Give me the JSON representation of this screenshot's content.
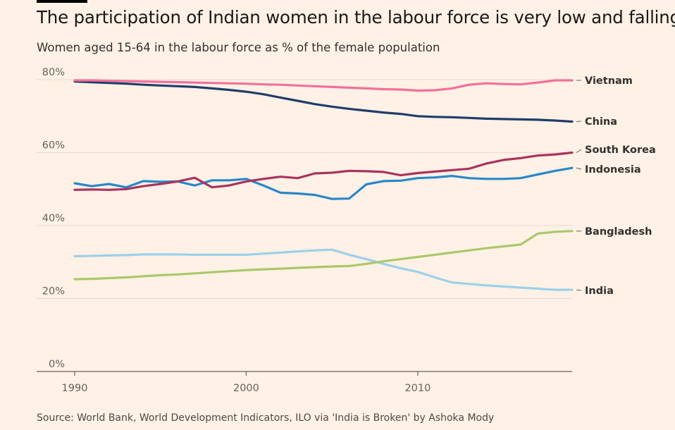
{
  "title": "The participation of Indian women in the labour force is very low and falling",
  "subtitle": "Women aged 15-64 in the labour force as % of the female population",
  "source": "Source: World Bank, World Development Indicators, ILO via 'India is Broken' by Ashoka Mody",
  "chart_data": {
    "type": "line",
    "title": "The participation of Indian women in the labour force is very low and falling",
    "subtitle": "Women aged 15-64 in the labour force as % of the female population",
    "xlabel": "",
    "ylabel": "",
    "xlim": [
      1990,
      2019
    ],
    "ylim": [
      0,
      80
    ],
    "x_ticks": [
      {
        "value": 1990,
        "label": "1990"
      },
      {
        "value": 2000,
        "label": "2000"
      },
      {
        "value": 2010,
        "label": "2010"
      }
    ],
    "y_ticks": [
      {
        "value": 0,
        "label": "0%"
      },
      {
        "value": 20,
        "label": "20%"
      },
      {
        "value": 40,
        "label": "40%"
      },
      {
        "value": 60,
        "label": "60%"
      },
      {
        "value": 80,
        "label": "80%"
      }
    ],
    "grid": "horizontal",
    "legend": "direct labels at right end of lines",
    "x": [
      1990,
      1991,
      1992,
      1993,
      1994,
      1995,
      1996,
      1997,
      1998,
      1999,
      2000,
      2001,
      2002,
      2003,
      2004,
      2005,
      2006,
      2007,
      2008,
      2009,
      2010,
      2011,
      2012,
      2013,
      2014,
      2015,
      2016,
      2017,
      2018,
      2019
    ],
    "series": [
      {
        "name": "Vietnam",
        "color": "#f2709c",
        "values": [
          79.8,
          79.8,
          79.7,
          79.6,
          79.5,
          79.4,
          79.3,
          79.2,
          79.1,
          79.0,
          78.9,
          78.7,
          78.6,
          78.4,
          78.2,
          78.0,
          77.8,
          77.6,
          77.4,
          77.3,
          77.0,
          77.1,
          77.6,
          78.6,
          79.0,
          78.8,
          78.7,
          79.2,
          79.8,
          79.8
        ]
      },
      {
        "name": "China",
        "color": "#1f3d6b",
        "values": [
          79.5,
          79.3,
          79.1,
          78.9,
          78.6,
          78.4,
          78.2,
          78.0,
          77.6,
          77.2,
          76.7,
          76.0,
          75.1,
          74.2,
          73.3,
          72.6,
          72.0,
          71.5,
          71.0,
          70.6,
          70.0,
          69.8,
          69.7,
          69.5,
          69.3,
          69.2,
          69.1,
          69.0,
          68.8,
          68.5
        ]
      },
      {
        "name": "South Korea",
        "color": "#a93360",
        "values": [
          49.8,
          49.9,
          49.8,
          50.0,
          50.8,
          51.4,
          52.1,
          53.1,
          50.5,
          51.0,
          52.1,
          52.8,
          53.4,
          53.0,
          54.3,
          54.5,
          55.0,
          54.9,
          54.7,
          53.8,
          54.4,
          54.8,
          55.2,
          55.6,
          57.0,
          58.0,
          58.5,
          59.2,
          59.5,
          60.0
        ]
      },
      {
        "name": "Indonesia",
        "color": "#2788c9",
        "values": [
          51.6,
          50.8,
          51.4,
          50.5,
          52.2,
          52.0,
          52.1,
          51.0,
          52.4,
          52.4,
          52.8,
          51.0,
          49.0,
          48.8,
          48.4,
          47.3,
          47.4,
          51.3,
          52.2,
          52.3,
          53.0,
          53.2,
          53.6,
          53.0,
          52.8,
          52.8,
          53.0,
          54.0,
          55.0,
          55.8
        ]
      },
      {
        "name": "Bangladesh",
        "color": "#a9c96a",
        "values": [
          25.3,
          25.4,
          25.6,
          25.8,
          26.1,
          26.4,
          26.6,
          26.9,
          27.2,
          27.5,
          27.8,
          28.0,
          28.2,
          28.4,
          28.6,
          28.8,
          28.9,
          29.5,
          30.2,
          30.8,
          31.4,
          32.0,
          32.6,
          33.2,
          33.8,
          34.3,
          34.8,
          37.8,
          38.3,
          38.5
        ]
      },
      {
        "name": "India",
        "color": "#9bd1ea",
        "values": [
          31.6,
          31.7,
          31.8,
          31.9,
          32.1,
          32.1,
          32.1,
          32.0,
          32.0,
          32.0,
          32.0,
          32.3,
          32.6,
          32.9,
          33.2,
          33.4,
          32.0,
          30.8,
          29.5,
          28.3,
          27.3,
          25.8,
          24.4,
          24.0,
          23.6,
          23.3,
          23.0,
          22.7,
          22.4,
          22.4
        ]
      }
    ]
  }
}
